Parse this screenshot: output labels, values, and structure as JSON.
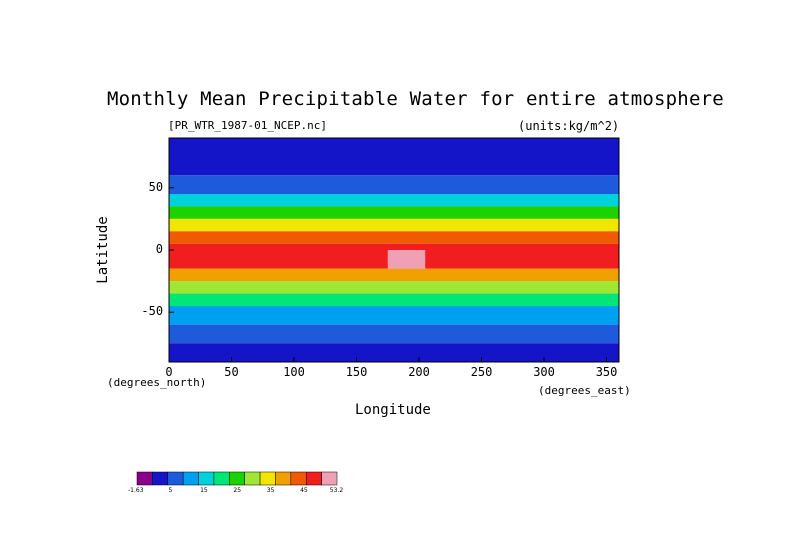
{
  "chart_data": {
    "type": "heatmap",
    "title": "Monthly Mean Precipitable Water for entire atmosphere",
    "file_label": "[PR_WTR_1987-01_NCEP.nc]",
    "units_label": "(units:kg/m^2)",
    "xlabel": "Longitude",
    "ylabel": "Latitude",
    "x_unit_label": "(degrees_east)",
    "y_unit_label": "(degrees_north)",
    "xlim": [
      0,
      360
    ],
    "ylim": [
      -90,
      90
    ],
    "x_ticks": [
      "0",
      "50",
      "100",
      "150",
      "200",
      "250",
      "300",
      "350"
    ],
    "y_ticks": [
      "50",
      "0",
      "-50"
    ],
    "colorbar": {
      "labels": [
        "-1.63",
        "5",
        "15",
        "25",
        "35",
        "45",
        "53.2"
      ],
      "colors": [
        "#8b008b",
        "#1414c8",
        "#1e5adc",
        "#00a0f0",
        "#00d2dc",
        "#00e678",
        "#1ed200",
        "#a0e632",
        "#f0e600",
        "#f0a000",
        "#f05a00",
        "#f01e1e",
        "#f0a0b4"
      ]
    },
    "bands_by_latitude": [
      {
        "lat": [
          60,
          90
        ],
        "level": 1
      },
      {
        "lat": [
          45,
          60
        ],
        "level": 2
      },
      {
        "lat": [
          35,
          45
        ],
        "level": 4
      },
      {
        "lat": [
          25,
          35
        ],
        "level": 6
      },
      {
        "lat": [
          15,
          25
        ],
        "level": 8
      },
      {
        "lat": [
          5,
          15
        ],
        "level": 10
      },
      {
        "lat": [
          -15,
          5
        ],
        "level": 11
      },
      {
        "lat": [
          -25,
          -15
        ],
        "level": 9
      },
      {
        "lat": [
          -35,
          -25
        ],
        "level": 7
      },
      {
        "lat": [
          -45,
          -35
        ],
        "level": 5
      },
      {
        "lat": [
          -60,
          -45
        ],
        "level": 3
      },
      {
        "lat": [
          -75,
          -60
        ],
        "level": 2
      },
      {
        "lat": [
          -90,
          -75
        ],
        "level": 1
      }
    ],
    "max_region": {
      "lon": [
        175,
        205
      ],
      "lat": [
        -15,
        0
      ],
      "level": 12
    }
  }
}
